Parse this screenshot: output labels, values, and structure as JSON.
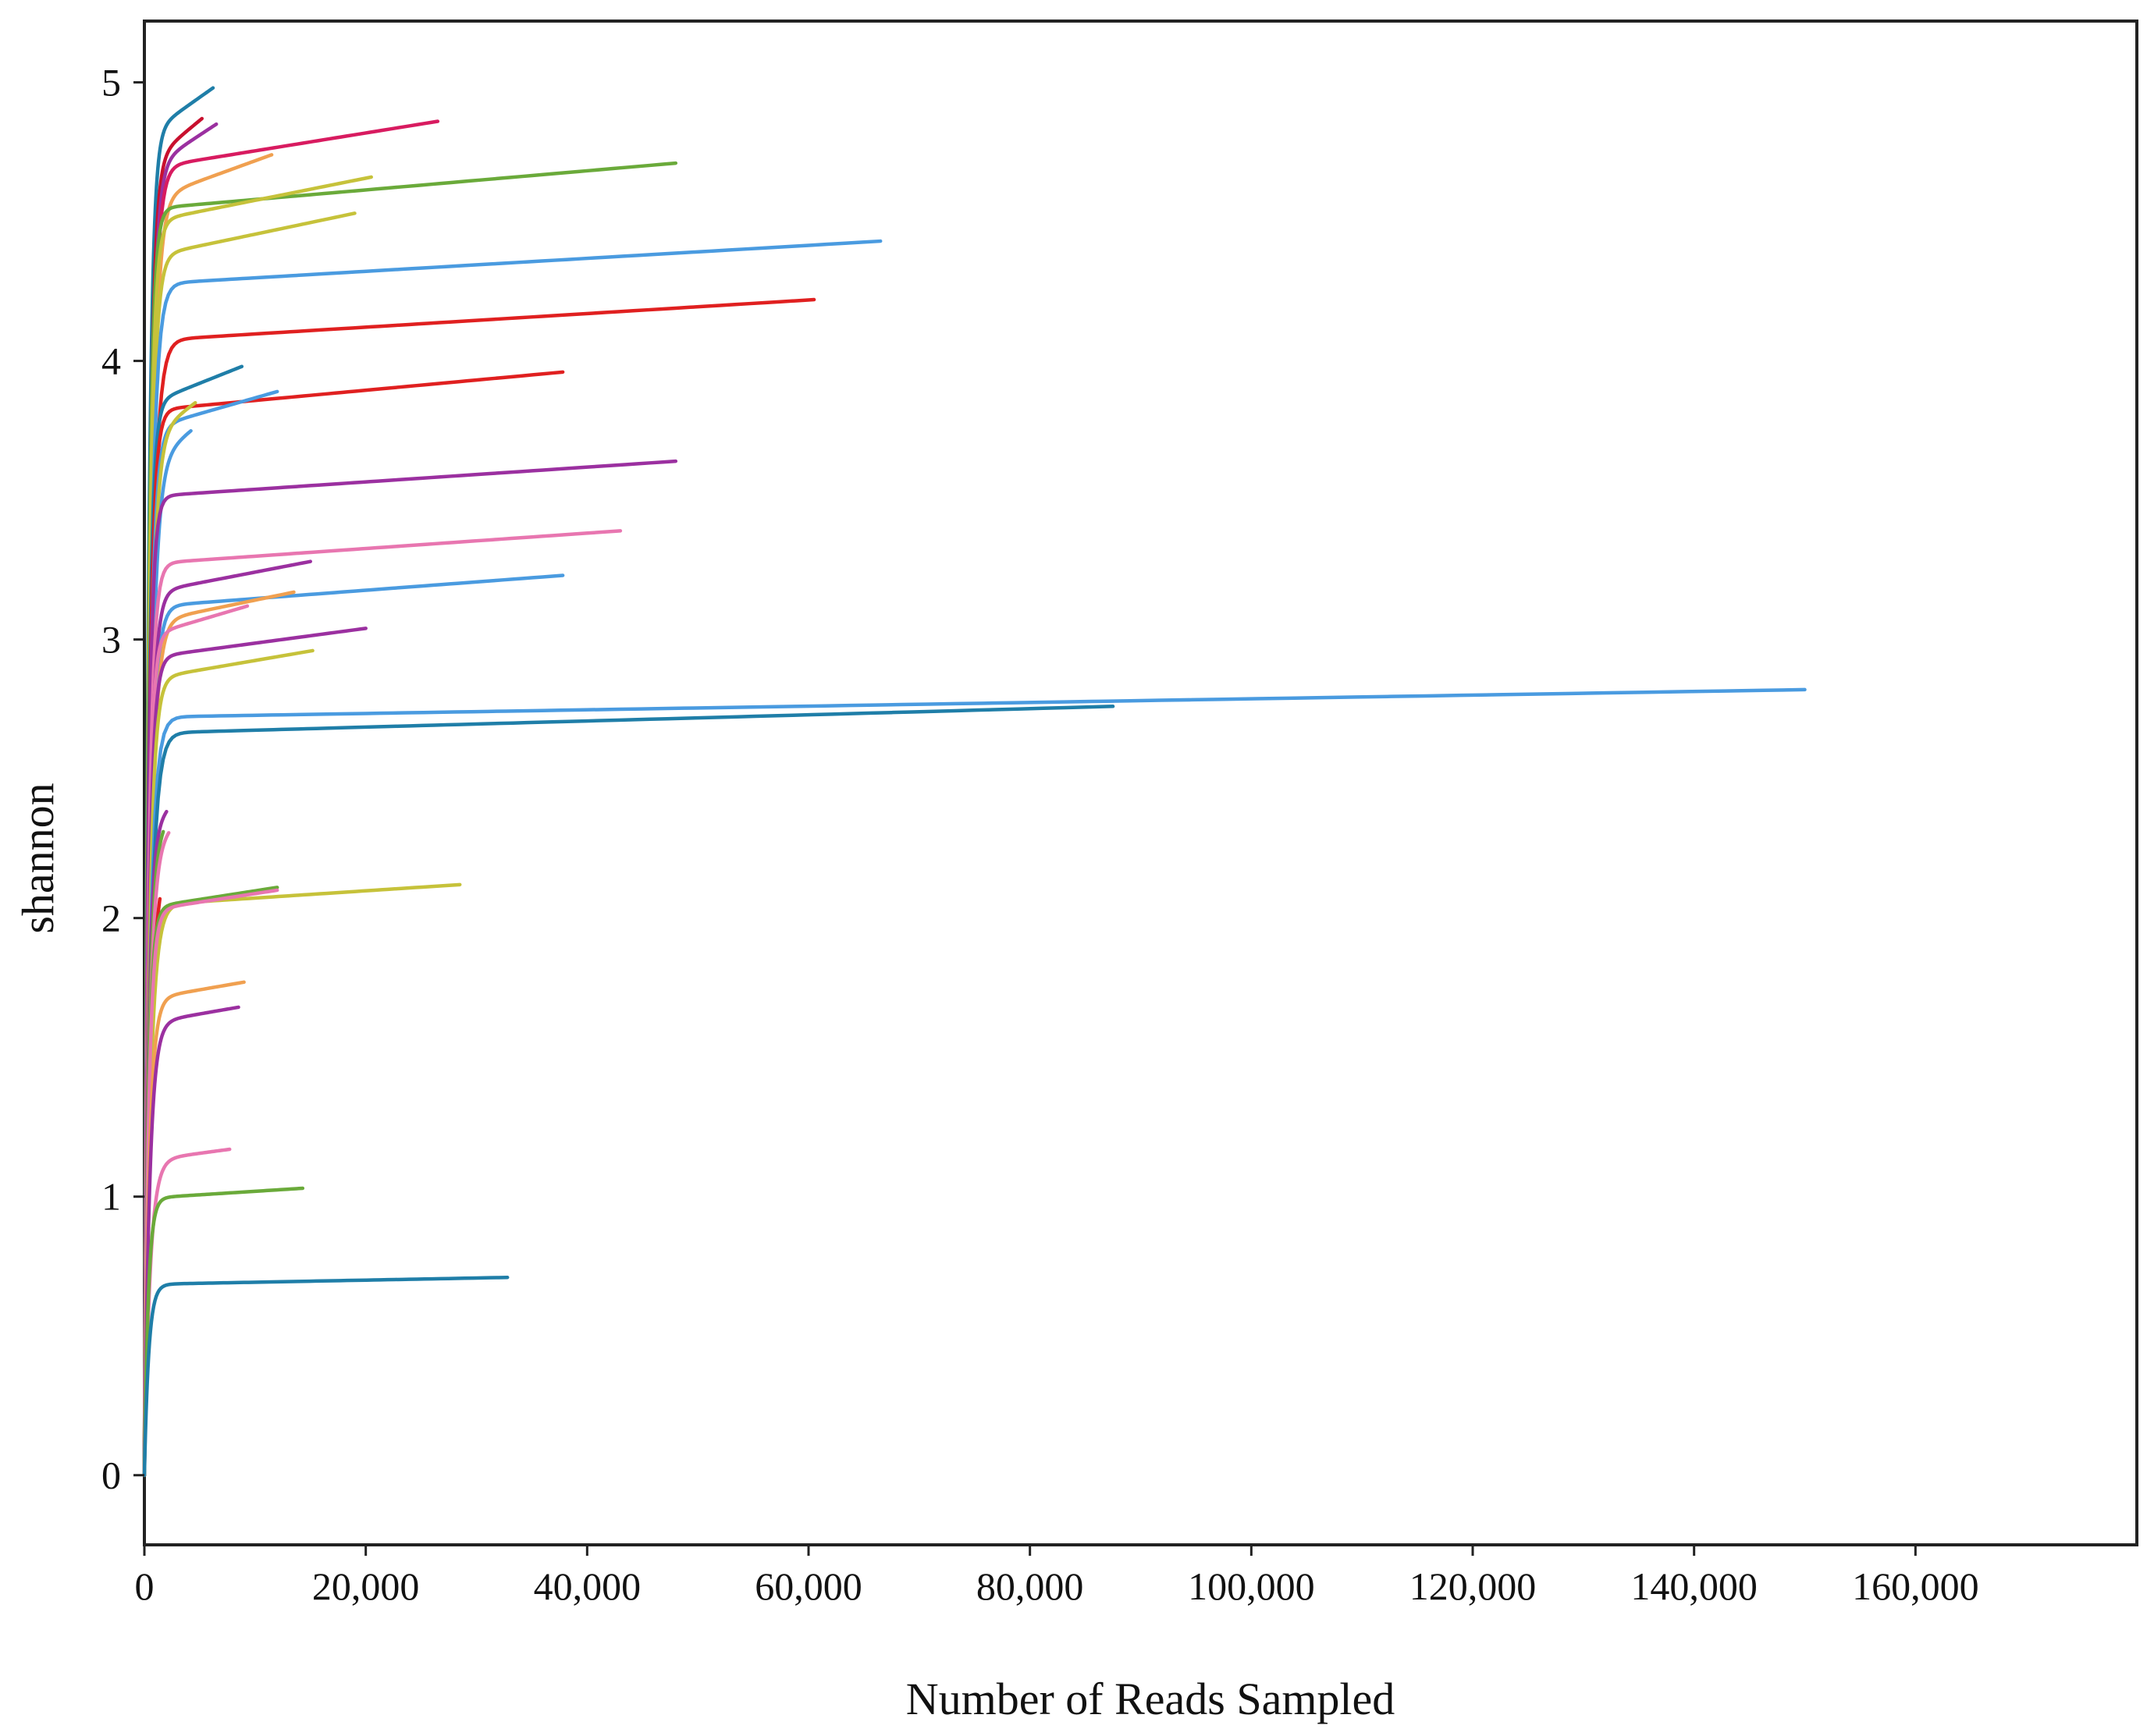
{
  "chart_data": {
    "type": "line",
    "title": "",
    "xlabel": "Number of Reads Sampled",
    "ylabel": "shannon",
    "xlim": [
      0,
      180000
    ],
    "ylim": [
      -0.25,
      5.22
    ],
    "xticks": [
      0,
      20000,
      40000,
      60000,
      80000,
      100000,
      120000,
      140000,
      160000
    ],
    "xtick_labels": [
      "0",
      "20,000",
      "40,000",
      "60,000",
      "80,000",
      "100,000",
      "120,000",
      "140,000",
      "160,000"
    ],
    "yticks": [
      0,
      1,
      2,
      3,
      4,
      5
    ],
    "ytick_labels": [
      "0",
      "1",
      "2",
      "3",
      "4",
      "5"
    ],
    "grid": false,
    "legend": "none",
    "series": [
      {
        "color": "#1f7ea8",
        "max_reads": 6200,
        "final": 4.98
      },
      {
        "color": "#c8102e",
        "max_reads": 5200,
        "final": 4.87
      },
      {
        "color": "#9b30a0",
        "max_reads": 6500,
        "final": 4.85
      },
      {
        "color": "#d81b60",
        "max_reads": 26500,
        "final": 4.86
      },
      {
        "color": "#f0a050",
        "max_reads": 11500,
        "final": 4.74
      },
      {
        "color": "#6aaa3a",
        "max_reads": 48000,
        "final": 4.71
      },
      {
        "color": "#c6c23a",
        "max_reads": 20500,
        "final": 4.66
      },
      {
        "color": "#c6c23a",
        "max_reads": 19000,
        "final": 4.53
      },
      {
        "color": "#4a9be0",
        "max_reads": 66500,
        "final": 4.43
      },
      {
        "color": "#e02020",
        "max_reads": 60500,
        "final": 4.22
      },
      {
        "color": "#1f7ea8",
        "max_reads": 8800,
        "final": 3.98
      },
      {
        "color": "#e02020",
        "max_reads": 37800,
        "final": 3.96
      },
      {
        "color": "#4a9be0",
        "max_reads": 12000,
        "final": 3.89
      },
      {
        "color": "#c6c23a",
        "max_reads": 4600,
        "final": 3.85
      },
      {
        "color": "#4a9be0",
        "max_reads": 4200,
        "final": 3.75
      },
      {
        "color": "#9b30a0",
        "max_reads": 48000,
        "final": 3.64
      },
      {
        "color": "#e876b0",
        "max_reads": 43000,
        "final": 3.39
      },
      {
        "color": "#9b30a0",
        "max_reads": 15000,
        "final": 3.28
      },
      {
        "color": "#4a9be0",
        "max_reads": 37800,
        "final": 3.23
      },
      {
        "color": "#f0a050",
        "max_reads": 13500,
        "final": 3.17
      },
      {
        "color": "#e876b0",
        "max_reads": 9300,
        "final": 3.12
      },
      {
        "color": "#9b30a0",
        "max_reads": 20000,
        "final": 3.04
      },
      {
        "color": "#c6c23a",
        "max_reads": 15200,
        "final": 2.96
      },
      {
        "color": "#4a9be0",
        "max_reads": 150000,
        "final": 2.82
      },
      {
        "color": "#1f7ea8",
        "max_reads": 87500,
        "final": 2.76
      },
      {
        "color": "#9b30a0",
        "max_reads": 2000,
        "final": 2.39
      },
      {
        "color": "#6aaa3a",
        "max_reads": 1700,
        "final": 2.34
      },
      {
        "color": "#e876b0",
        "max_reads": 2200,
        "final": 2.32
      },
      {
        "color": "#e02020",
        "max_reads": 1400,
        "final": 2.18
      },
      {
        "color": "#c6c23a",
        "max_reads": 28500,
        "final": 2.12
      },
      {
        "color": "#6aaa3a",
        "max_reads": 12000,
        "final": 2.11
      },
      {
        "color": "#e876b0",
        "max_reads": 12000,
        "final": 2.1
      },
      {
        "color": "#f0a050",
        "max_reads": 9000,
        "final": 1.77
      },
      {
        "color": "#9b30a0",
        "max_reads": 8500,
        "final": 1.68
      },
      {
        "color": "#e876b0",
        "max_reads": 7700,
        "final": 1.17
      },
      {
        "color": "#6aaa3a",
        "max_reads": 14300,
        "final": 1.03
      },
      {
        "color": "#1f7ea8",
        "max_reads": 32800,
        "final": 0.71
      }
    ]
  }
}
